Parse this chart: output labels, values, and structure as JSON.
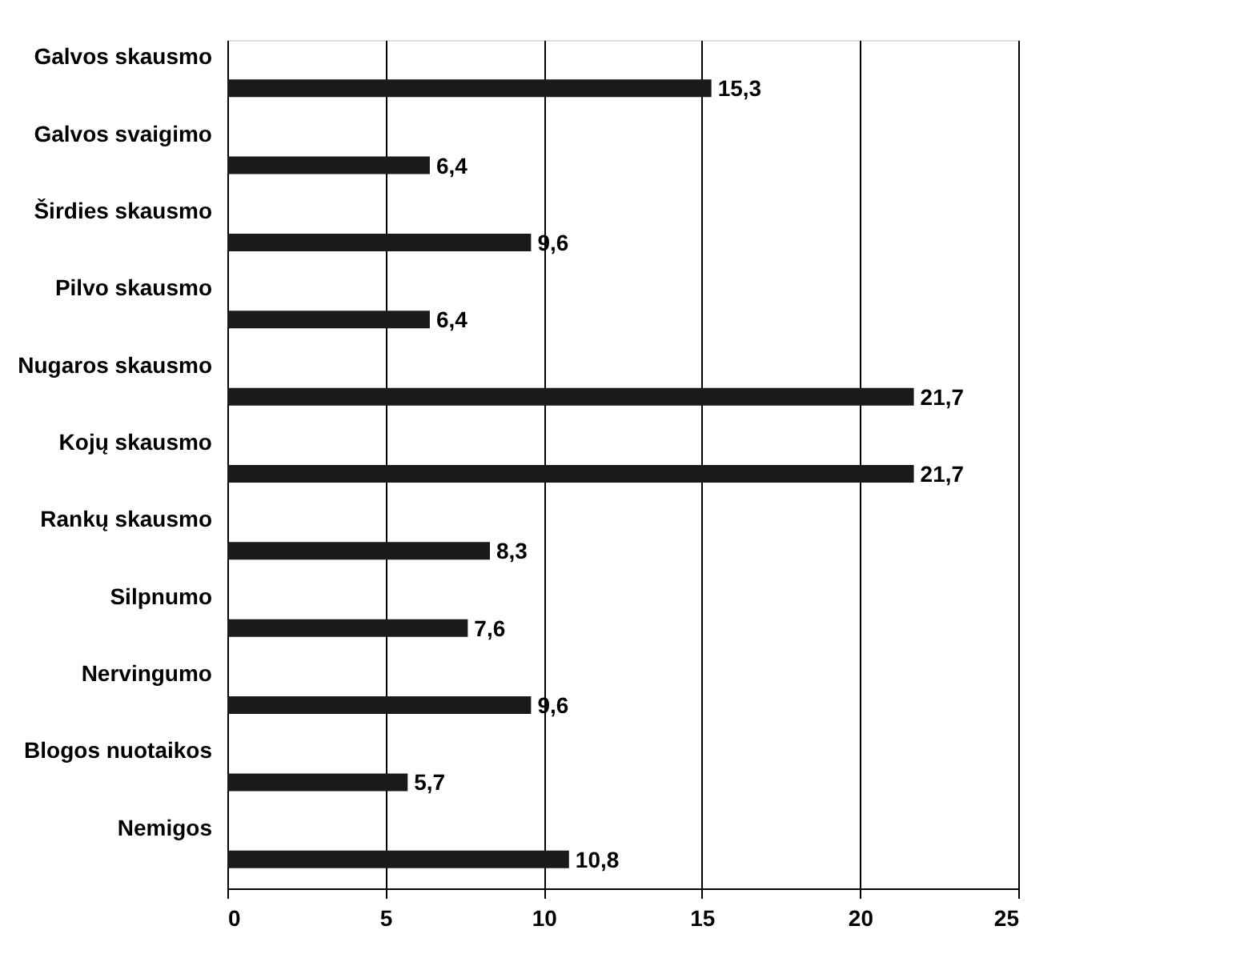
{
  "chart_data": {
    "type": "bar",
    "orientation": "horizontal",
    "categories": [
      "Galvos skausmo",
      "Galvos svaigimo",
      "Širdies skausmo",
      "Pilvo skausmo",
      "Nugaros skausmo",
      "Kojų skausmo",
      "Rankų skausmo",
      "Silpnumo",
      "Nervingumo",
      "Blogos nuotaikos",
      "Nemigos"
    ],
    "values": [
      15.3,
      6.4,
      9.6,
      6.4,
      21.7,
      21.7,
      8.3,
      7.6,
      9.6,
      5.7,
      10.8
    ],
    "value_labels": [
      "15,3",
      "6,4",
      "9,6",
      "6,4",
      "21,7",
      "21,7",
      "8,3",
      "7,6",
      "9,6",
      "5,7",
      "10,8"
    ],
    "color": "#1a1a1a",
    "xlim": [
      0,
      25
    ],
    "xticks": [
      0,
      5,
      10,
      15,
      20,
      25
    ],
    "grid": "x"
  }
}
